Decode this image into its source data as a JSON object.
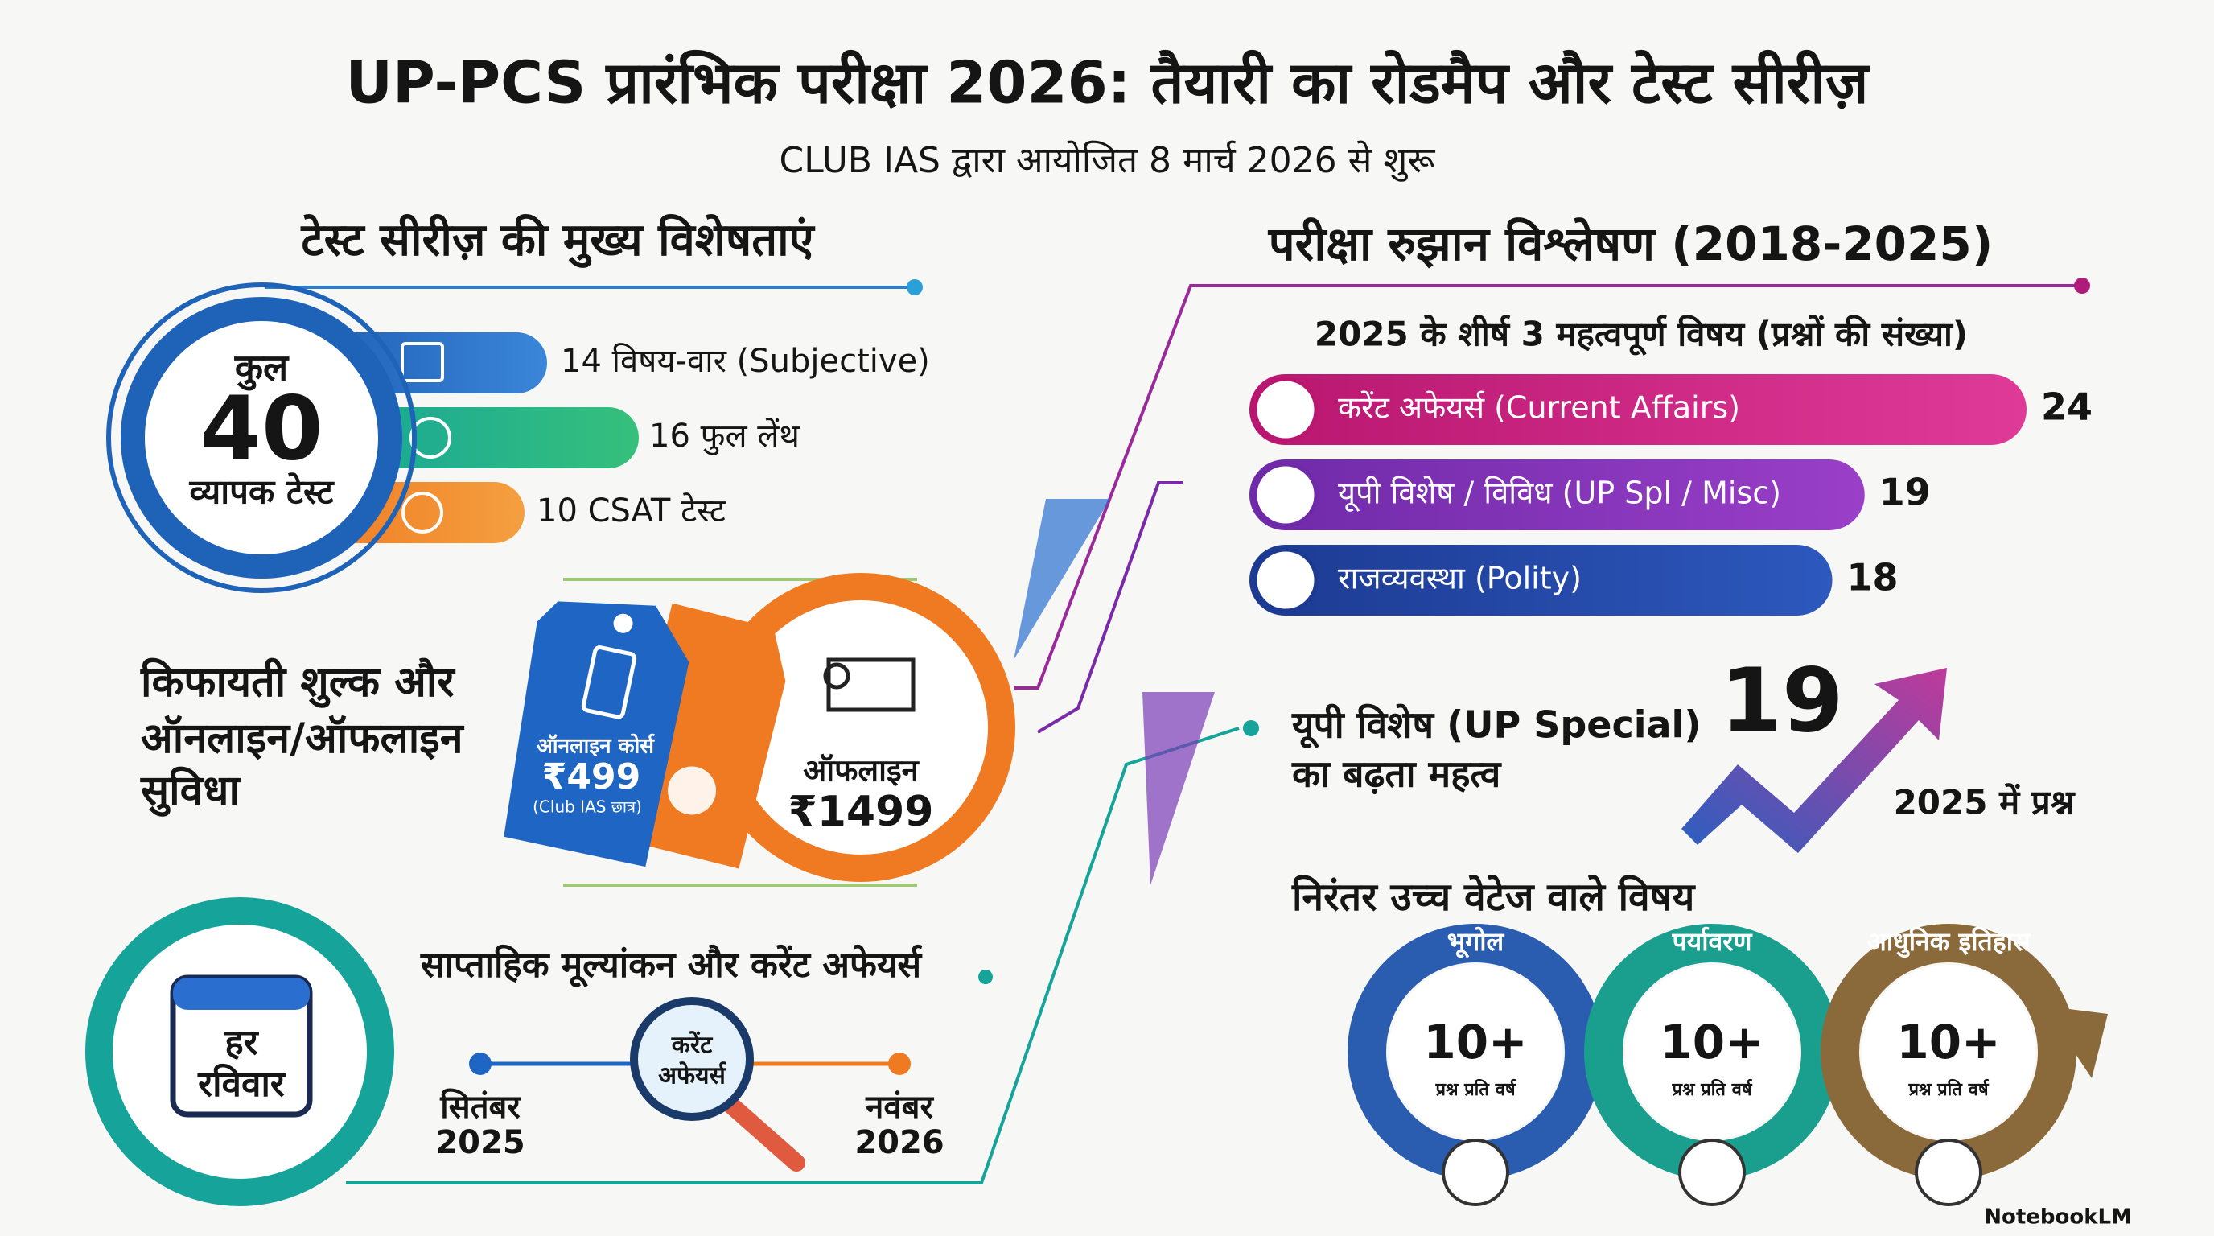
{
  "header": {
    "title": "UP-PCS प्रारंभिक परीक्षा 2026: तैयारी का रोडमैप और टेस्ट सीरीज़",
    "subtitle": "CLUB IAS द्वारा आयोजित 8 मार्च 2026 से शुरू"
  },
  "features": {
    "heading": "टेस्ट सीरीज़ की मुख्य विशेषताएं",
    "total": {
      "top": "कुल",
      "count": 40,
      "bottom": "व्यापक टेस्ट"
    },
    "items": [
      "14 विषय-वार (Subjective)",
      "16 फुल लेंथ",
      "10 CSAT टेस्ट"
    ]
  },
  "fees": {
    "lines": [
      "किफायती शुल्क और",
      "ऑनलाइन/ऑफलाइन",
      "सुविधा"
    ],
    "online": {
      "label": "ऑनलाइन कोर्स",
      "price": "₹499",
      "note": "(Club IAS छात्र)"
    },
    "offline": {
      "label": "ऑफलाइन",
      "price": "₹1499"
    }
  },
  "weekly": {
    "heading": "साप्ताहिक मूल्यांकन और करेंट अफेयर्स",
    "day": [
      "हर",
      "रविवार"
    ],
    "start": [
      "सितंबर",
      "2025"
    ],
    "center": [
      "करेंट",
      "अफेयर्स"
    ],
    "end": [
      "नवंबर",
      "2026"
    ]
  },
  "trend": {
    "heading": "परीक्षा रुझान विश्लेषण (2018-2025)",
    "subheading": "2025 के शीर्ष 3 महत्वपूर्ण विषय (प्रश्नों की संख्या)",
    "topics": [
      {
        "name": "करेंट अफेयर्स (Current Affairs)",
        "questions": 24
      },
      {
        "name": "यूपी विशेष / विविध (UP Spl / Misc)",
        "questions": 19
      },
      {
        "name": "राजव्यवस्था (Polity)",
        "questions": 18
      }
    ]
  },
  "up_special": {
    "lines": [
      "यूपी विशेष (UP Special)",
      "का बढ़ता महत्व"
    ],
    "count": 19,
    "caption": "2025 में प्रश्न"
  },
  "high_weight": {
    "heading": "निरंतर उच्च वेटेज वाले विषय",
    "topics": [
      {
        "name": "भूगोल",
        "count": "10+",
        "unit": "प्रश्न प्रति वर्ष"
      },
      {
        "name": "पर्यावरण",
        "count": "10+",
        "unit": "प्रश्न प्रति वर्ष"
      },
      {
        "name": "आधुनिक इतिहास",
        "count": "10+",
        "unit": "प्रश्न प्रति वर्ष"
      }
    ]
  },
  "brand": "NotebookLM"
}
